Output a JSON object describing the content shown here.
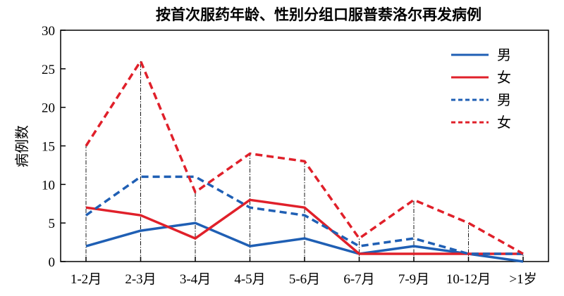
{
  "chart_data": {
    "type": "line",
    "title": "按首次服药年龄、性别分组口服普萘洛尔再发病例",
    "ylabel": "病例数",
    "xlabel": "",
    "categories": [
      "1-2月",
      "2-3月",
      "3-4月",
      "4-5月",
      "5-6月",
      "6-7月",
      "7-9月",
      "10-12月",
      ">1岁"
    ],
    "ylim": [
      0,
      30
    ],
    "yticks": [
      0,
      5,
      10,
      15,
      20,
      25,
      30
    ],
    "grid": false,
    "legend_position": "top-right",
    "series": [
      {
        "name": "男",
        "style": "solid",
        "color": "#1f5fb4",
        "values": [
          2,
          4,
          5,
          2,
          3,
          1,
          2,
          1,
          0
        ]
      },
      {
        "name": "女",
        "style": "solid",
        "color": "#e0202a",
        "values": [
          7,
          6,
          3,
          8,
          7,
          1,
          1,
          1,
          1
        ]
      },
      {
        "name": "男",
        "style": "dashed",
        "color": "#1f5fb4",
        "values": [
          6,
          11,
          11,
          7,
          6,
          2,
          3,
          1,
          1
        ]
      },
      {
        "name": "女",
        "style": "dashed",
        "color": "#e0202a",
        "values": [
          15,
          26,
          9,
          14,
          13,
          3,
          8,
          5,
          1
        ]
      }
    ],
    "guide_lines": "dash-dot vertical lines from baseline to dashed 女 series at each category"
  }
}
